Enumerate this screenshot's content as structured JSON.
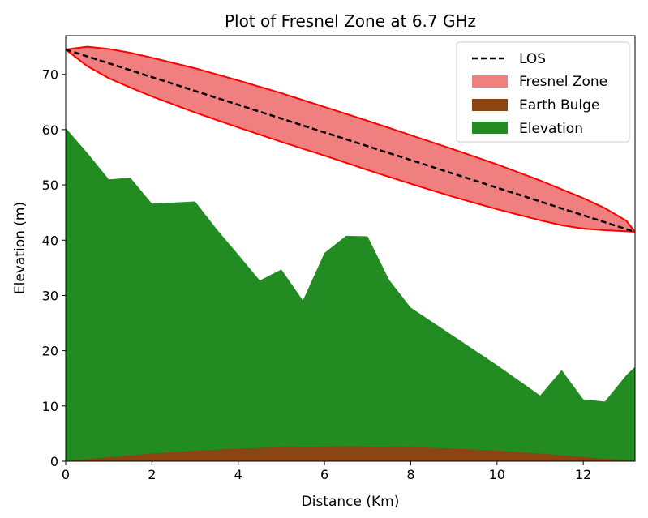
{
  "chart_data": {
    "type": "area",
    "title": "Plot of Fresnel Zone at 6.7 GHz",
    "xlabel": "Distance (Km)",
    "ylabel": "Elevation (m)",
    "xlim": [
      0,
      13.2
    ],
    "ylim": [
      0,
      77
    ],
    "xticks": [
      0,
      2,
      4,
      6,
      8,
      10,
      12
    ],
    "yticks": [
      0,
      10,
      20,
      30,
      40,
      50,
      60,
      70
    ],
    "grid": false,
    "legend_position": "top-right",
    "series": [
      {
        "name": "LOS",
        "kind": "line",
        "style": "dashed",
        "color": "#000000",
        "x": [
          0,
          13.2
        ],
        "y": [
          74.5,
          41.5
        ]
      },
      {
        "name": "Fresnel Zone",
        "kind": "band",
        "fill": "#f08080",
        "edge": "#ff0000",
        "x": [
          0,
          0.5,
          1,
          1.5,
          2,
          3,
          4,
          5,
          6,
          7,
          8,
          9,
          10,
          11,
          11.5,
          12,
          12.5,
          13,
          13.2
        ],
        "upper": [
          74.5,
          75.0,
          74.6,
          73.9,
          73.0,
          71.1,
          68.9,
          66.6,
          64.1,
          61.6,
          59.0,
          56.4,
          53.7,
          50.8,
          49.2,
          47.6,
          45.8,
          43.5,
          41.5
        ],
        "lower": [
          74.5,
          71.5,
          69.3,
          67.6,
          66.0,
          63.1,
          60.4,
          57.8,
          55.3,
          52.7,
          50.2,
          47.8,
          45.6,
          43.6,
          42.7,
          42.1,
          41.8,
          41.6,
          41.5
        ]
      },
      {
        "name": "Earth Bulge",
        "kind": "area",
        "fill": "#8b4513",
        "x": [
          0,
          1,
          2,
          3,
          4,
          5,
          6,
          6.6,
          7,
          8,
          9,
          10,
          11,
          12,
          13,
          13.2
        ],
        "y": [
          0,
          0.75,
          1.4,
          1.9,
          2.3,
          2.55,
          2.65,
          2.7,
          2.65,
          2.55,
          2.3,
          1.9,
          1.4,
          0.75,
          0.15,
          0
        ]
      },
      {
        "name": "Elevation",
        "kind": "area",
        "fill": "#228b22",
        "x": [
          0,
          0.5,
          1,
          1.5,
          2,
          3,
          3.5,
          4,
          4.5,
          5,
          5.5,
          6,
          6.5,
          7,
          7.5,
          8,
          9,
          10,
          11,
          11.5,
          12,
          12.5,
          13,
          13.2
        ],
        "y": [
          60.3,
          55.8,
          51.0,
          51.3,
          46.6,
          47.0,
          42.0,
          37.4,
          32.7,
          34.7,
          29.1,
          37.7,
          40.8,
          40.7,
          32.8,
          27.8,
          22.6,
          17.4,
          11.9,
          16.5,
          11.2,
          10.8,
          15.6,
          17.1
        ]
      }
    ]
  }
}
